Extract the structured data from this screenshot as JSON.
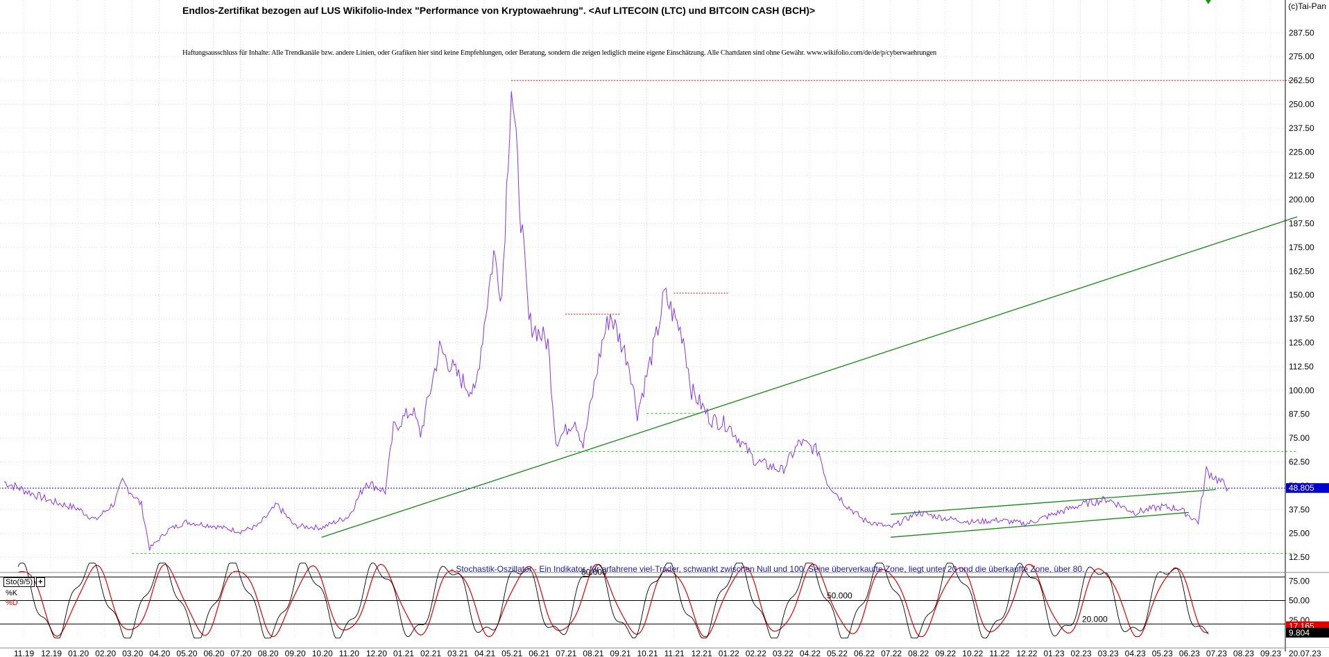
{
  "chart_data": {
    "type": "line",
    "title": "Endlos-Zertifikat bezogen auf LUS Wikifolio-Index \"Performance von Kryptowaehrung\". <Auf LITECOIN (LTC) und BITCOIN CASH (BCH)>",
    "subtitle": "Haftungsausschluss für Inhalte: Alle Trendkanäle bzw. andere Linien, oder Grafiken hier sind keine Empfehlungen, oder Beratung, sondern die zeigen lediglich meine eigene Einschätzung. Alle Chartdaten sind ohne Gewähr. www.wikifolio.com/de/de/p/cyberwaehrungen",
    "copyright": "(c)Tai-Pan",
    "price_axis": {
      "ylim": [
        0,
        300
      ],
      "ticks": [
        "12.50",
        "25.00",
        "37.50",
        "50.00",
        "62.50",
        "75.00",
        "87.50",
        "100.00",
        "112.50",
        "125.00",
        "137.50",
        "150.00",
        "162.50",
        "175.00",
        "187.50",
        "200.00",
        "212.50",
        "225.00",
        "237.50",
        "250.00",
        "262.50",
        "275.00",
        "287.50"
      ],
      "last_value": "48.805",
      "last_color": "#0000cc"
    },
    "x_ticks": [
      "11.19",
      "12.19",
      "01.20",
      "02.20",
      "03.20",
      "04.20",
      "05.20",
      "06.20",
      "07.20",
      "08.20",
      "09.20",
      "10.20",
      "11.20",
      "12.20",
      "01.21",
      "02.21",
      "03.21",
      "04.21",
      "05.21",
      "06.21",
      "07.21",
      "08.21",
      "09.21",
      "10.21",
      "11.21",
      "12.21",
      "01.22",
      "02.22",
      "03.22",
      "04.22",
      "05.22",
      "06.22",
      "07.22",
      "08.22",
      "09.22",
      "10.22",
      "11.22",
      "12.22",
      "01.23",
      "02.23",
      "03.23",
      "04.23",
      "05.23",
      "06.23",
      "07.23",
      "08.23",
      "09.23"
    ],
    "last_date": "20.07.23",
    "series": [
      {
        "color": "#8833ee",
        "keypoints": [
          [
            "11.19",
            52
          ],
          [
            "12.19",
            42
          ],
          [
            "01.20",
            38
          ],
          [
            "02.20",
            32
          ],
          [
            "02.20",
            41
          ],
          [
            "03.20",
            52
          ],
          [
            "03.20",
            40
          ],
          [
            "04.20",
            17
          ],
          [
            "04.20",
            27
          ],
          [
            "05.20",
            31
          ],
          [
            "06.20",
            29
          ],
          [
            "07.20",
            26
          ],
          [
            "08.20",
            29
          ],
          [
            "08.20",
            40
          ],
          [
            "09.20",
            29
          ],
          [
            "10.20",
            28
          ],
          [
            "11.20",
            34
          ],
          [
            "12.20",
            52
          ],
          [
            "12.20",
            47
          ],
          [
            "01.21",
            80
          ],
          [
            "01.21",
            90
          ],
          [
            "02.21",
            77
          ],
          [
            "02.21",
            122
          ],
          [
            "03.21",
            108
          ],
          [
            "04.21",
            98
          ],
          [
            "04.21",
            172
          ],
          [
            "05.21",
            150
          ],
          [
            "05.21",
            262
          ],
          [
            "05.21",
            192
          ],
          [
            "06.21",
            136
          ],
          [
            "06.21",
            125
          ],
          [
            "07.21",
            73
          ],
          [
            "07.21",
            85
          ],
          [
            "08.21",
            71
          ],
          [
            "08.21",
            125
          ],
          [
            "09.21",
            140
          ],
          [
            "09.21",
            114
          ],
          [
            "10.21",
            88
          ],
          [
            "10.21",
            128
          ],
          [
            "11.21",
            150
          ],
          [
            "11.21",
            128
          ],
          [
            "12.21",
            100
          ],
          [
            "12.21",
            85
          ],
          [
            "01.22",
            82
          ],
          [
            "02.22",
            63
          ],
          [
            "03.22",
            58
          ],
          [
            "04.22",
            73
          ],
          [
            "04.22",
            68
          ],
          [
            "05.22",
            52
          ],
          [
            "05.22",
            40
          ],
          [
            "06.22",
            32
          ],
          [
            "07.22",
            28
          ],
          [
            "08.22",
            36
          ],
          [
            "09.22",
            33
          ],
          [
            "10.22",
            31
          ],
          [
            "11.22",
            32
          ],
          [
            "12.22",
            30
          ],
          [
            "01.23",
            35
          ],
          [
            "02.23",
            40
          ],
          [
            "03.23",
            43
          ],
          [
            "04.23",
            36
          ],
          [
            "05.23",
            39
          ],
          [
            "06.23",
            38
          ],
          [
            "06.23",
            31
          ],
          [
            "07.23",
            58
          ],
          [
            "07.23",
            48.8
          ]
        ]
      }
    ],
    "annotation_lines": [
      {
        "type": "horizontal",
        "color": "#e00000",
        "style": "dotted",
        "y": 262.5,
        "from": "05.21",
        "to": "10.23"
      },
      {
        "type": "horizontal",
        "color": "#e00000",
        "style": "dotted",
        "y": 140,
        "from": "07.21",
        "to": "09.21"
      },
      {
        "type": "horizontal",
        "color": "#e00000",
        "style": "dotted",
        "y": 151,
        "from": "11.21",
        "to": "01.22"
      },
      {
        "type": "horizontal",
        "color": "#0000cc",
        "style": "dotted",
        "y": 48.8,
        "from": "10.19",
        "to": "10.23"
      },
      {
        "type": "horizontal",
        "color": "#22cc22",
        "style": "dashed",
        "y": 68,
        "from": "07.21",
        "to": "10.23"
      },
      {
        "type": "horizontal",
        "color": "#22cc22",
        "style": "dashed",
        "y": 88,
        "from": "10.21",
        "to": "12.21"
      },
      {
        "type": "horizontal",
        "color": "#22cc22",
        "style": "dashed",
        "y": 14.5,
        "from": "03.20",
        "to": "10.23"
      },
      {
        "type": "trend",
        "color": "#118811",
        "p1": [
          "10.20",
          23
        ],
        "p2": [
          "10.23",
          191
        ]
      },
      {
        "type": "trend",
        "color": "#118811",
        "p1": [
          "07.22",
          35
        ],
        "p2": [
          "07.23",
          48
        ]
      },
      {
        "type": "trend",
        "color": "#118811",
        "p1": [
          "07.22",
          23
        ],
        "p2": [
          "06.23",
          36
        ]
      }
    ],
    "oscillator": {
      "name": "Sto(9/5)",
      "plus": "+",
      "k_label": "%K",
      "d_label": "%D",
      "k_color": "#000000",
      "d_color": "#e00000",
      "ylim": [
        0,
        100
      ],
      "levels": [
        "80.000",
        "50.000",
        "20.000"
      ],
      "ticks": [
        "25.00",
        "50.00",
        "75.00"
      ],
      "k_last": "9.804",
      "d_last": "17.165",
      "note": "- Stochastik-Oszillator - Ein Indikator, für erfahrene viel-Trader, schwankt zwischen Null und 100. Seine überverkaufte Zone, liegt unter 20 und die überkaufte Zone, über 80."
    }
  }
}
